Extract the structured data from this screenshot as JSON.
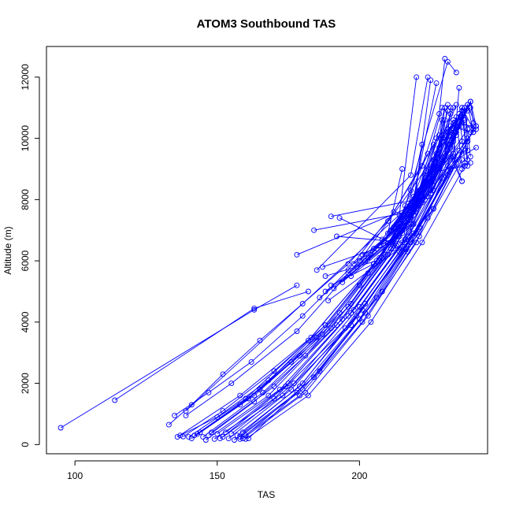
{
  "chart_data": {
    "type": "line",
    "title": "ATOM3 Southbound TAS",
    "xlabel": "TAS",
    "ylabel": "Altitude (m)",
    "xlim": [
      90,
      245
    ],
    "ylim": [
      -300,
      13000
    ],
    "xticks": [
      100,
      150,
      200
    ],
    "yticks": [
      0,
      2000,
      4000,
      6000,
      8000,
      10000,
      12000
    ],
    "grid": false,
    "legend": "none",
    "series_color": "#0000ff",
    "series": [
      {
        "x": [
          95,
          163,
          178
        ],
        "y": [
          550,
          4400,
          5200
        ]
      },
      {
        "x": [
          114,
          163,
          182
        ],
        "y": [
          1450,
          4450,
          5000
        ]
      },
      {
        "x": [
          133,
          141,
          152,
          165,
          180,
          196,
          210,
          222,
          228,
          230
        ],
        "y": [
          650,
          1300,
          2300,
          3400,
          4600,
          5900,
          7300,
          9100,
          10800,
          12600
        ]
      },
      {
        "x": [
          135,
          147,
          162,
          180,
          196,
          212,
          228,
          233
        ],
        "y": [
          950,
          1700,
          2700,
          4200,
          5700,
          7600,
          10100,
          10400
        ]
      },
      {
        "x": [
          136,
          158,
          183,
          205,
          223,
          235,
          240
        ],
        "y": [
          250,
          1600,
          3500,
          5900,
          8000,
          9600,
          10200
        ]
      },
      {
        "x": [
          139,
          155,
          178,
          200,
          218,
          232,
          236
        ],
        "y": [
          950,
          2000,
          3700,
          6000,
          8300,
          10200,
          10500
        ]
      },
      {
        "x": [
          140,
          160,
          182,
          205,
          222,
          238
        ],
        "y": [
          250,
          1500,
          3400,
          5900,
          8100,
          10300
        ]
      },
      {
        "x": [
          141,
          163,
          187,
          208,
          225,
          238
        ],
        "y": [
          200,
          1600,
          3600,
          6100,
          8300,
          10000
        ]
      },
      {
        "x": [
          143,
          165,
          188,
          207,
          223,
          230
        ],
        "y": [
          350,
          1800,
          3900,
          6100,
          8600,
          11000
        ]
      },
      {
        "x": [
          145,
          166,
          190,
          210,
          226,
          236
        ],
        "y": [
          250,
          1700,
          3800,
          6200,
          8700,
          9900
        ]
      },
      {
        "x": [
          146,
          168,
          192,
          212,
          227,
          239
        ],
        "y": [
          150,
          1600,
          3900,
          6400,
          8900,
          9200
        ]
      },
      {
        "x": [
          148,
          170,
          194,
          213,
          226,
          231
        ],
        "y": [
          400,
          1900,
          4100,
          6500,
          9100,
          10900
        ]
      },
      {
        "x": [
          149,
          170,
          195,
          214,
          229,
          237
        ],
        "y": [
          180,
          1500,
          3800,
          6300,
          8700,
          9600
        ]
      },
      {
        "x": [
          150,
          172,
          196,
          215,
          228,
          236
        ],
        "y": [
          350,
          1800,
          4200,
          6600,
          9000,
          10700
        ]
      },
      {
        "x": [
          151,
          173,
          197,
          216,
          231,
          238
        ],
        "y": [
          200,
          1600,
          3900,
          6400,
          8800,
          9900
        ]
      },
      {
        "x": [
          152,
          174,
          197,
          216,
          230,
          232
        ],
        "y": [
          250,
          1900,
          4300,
          6700,
          9300,
          11000
        ]
      },
      {
        "x": [
          153,
          175,
          198,
          217,
          232,
          236
        ],
        "y": [
          400,
          2000,
          4400,
          6800,
          9400,
          8600
        ]
      },
      {
        "x": [
          154,
          176,
          199,
          218,
          232,
          237
        ],
        "y": [
          200,
          1800,
          4200,
          6600,
          9000,
          9100
        ]
      },
      {
        "x": [
          155,
          177,
          200,
          219,
          233,
          235
        ],
        "y": [
          350,
          2000,
          4500,
          6900,
          9500,
          11650
        ]
      },
      {
        "x": [
          156,
          178,
          200,
          218,
          234,
          233
        ],
        "y": [
          150,
          1700,
          4100,
          6700,
          9200,
          10100
        ]
      },
      {
        "x": [
          157,
          179,
          201,
          219,
          233,
          236
        ],
        "y": [
          300,
          1900,
          4400,
          6900,
          9400,
          8600
        ]
      },
      {
        "x": [
          158,
          179,
          201,
          220,
          231,
          234
        ],
        "y": [
          180,
          1600,
          4000,
          6600,
          9100,
          10300
        ]
      },
      {
        "x": [
          158,
          180,
          202,
          220,
          234,
          241
        ],
        "y": [
          250,
          1800,
          4300,
          6900,
          9300,
          9700
        ]
      },
      {
        "x": [
          159,
          181,
          203,
          221,
          236
        ],
        "y": [
          200,
          1700,
          4200,
          6800,
          9300
        ]
      },
      {
        "x": [
          160,
          182,
          204,
          222,
          237
        ],
        "y": [
          180,
          1600,
          4000,
          6600,
          9100
        ]
      },
      {
        "x": [
          159,
          180,
          202,
          221,
          235
        ],
        "y": [
          400,
          2000,
          4600,
          7100,
          9600
        ]
      },
      {
        "x": [
          160,
          184,
          206,
          224,
          238
        ],
        "y": [
          300,
          2200,
          4800,
          7400,
          9900
        ]
      },
      {
        "x": [
          161,
          186,
          208,
          226,
          240
        ],
        "y": [
          200,
          2400,
          5000,
          7700,
          10300
        ]
      },
      {
        "x": [
          137,
          150,
          168,
          185,
          200,
          214,
          226
        ],
        "y": [
          300,
          900,
          2100,
          3500,
          5200,
          7000,
          8900
        ]
      },
      {
        "x": [
          138,
          152,
          170,
          188,
          203,
          216,
          228
        ],
        "y": [
          260,
          1100,
          2400,
          3900,
          5600,
          7400,
          9200
        ]
      },
      {
        "x": [
          142,
          158,
          176,
          193,
          207,
          219,
          231
        ],
        "y": [
          300,
          1300,
          2700,
          4300,
          6000,
          7900,
          9800
        ]
      },
      {
        "x": [
          144,
          161,
          179,
          196,
          209,
          221,
          232
        ],
        "y": [
          400,
          1500,
          2900,
          4500,
          6200,
          8100,
          10200
        ]
      },
      {
        "x": [
          147,
          163,
          181,
          197,
          211,
          223,
          234
        ],
        "y": [
          300,
          1400,
          2900,
          4600,
          6400,
          8400,
          10400
        ]
      },
      {
        "x": [
          139,
          214,
          220
        ],
        "y": [
          1100,
          7500,
          12000
        ]
      },
      {
        "x": [
          178,
          219,
          225
        ],
        "y": [
          6200,
          7800,
          11900
        ]
      },
      {
        "x": [
          184,
          218,
          227
        ],
        "y": [
          7000,
          7600,
          11800
        ]
      },
      {
        "x": [
          190,
          220,
          229
        ],
        "y": [
          7450,
          8000,
          11000
        ]
      },
      {
        "x": [
          193,
          217,
          222
        ],
        "y": [
          7400,
          6300,
          9800
        ]
      },
      {
        "x": [
          192,
          216,
          226
        ],
        "y": [
          6800,
          6600,
          7700
        ]
      },
      {
        "x": [
          187,
          209,
          215
        ],
        "y": [
          5800,
          6500,
          9000
        ]
      },
      {
        "x": [
          185,
          218,
          224
        ],
        "y": [
          5700,
          8800,
          12000
        ]
      },
      {
        "x": [
          188,
          206,
          213
        ],
        "y": [
          5500,
          6000,
          6800
        ]
      },
      {
        "x": [
          190,
          205,
          211
        ],
        "y": [
          5200,
          5900,
          6600
        ]
      },
      {
        "x": [
          198,
          216,
          222
        ],
        "y": [
          5900,
          7300,
          9800
        ]
      },
      {
        "x": [
          200,
          214,
          221
        ],
        "y": [
          6000,
          7100,
          8300
        ]
      },
      {
        "x": [
          201,
          213,
          218
        ],
        "y": [
          6200,
          6800,
          7200
        ]
      },
      {
        "x": [
          203,
          215,
          219
        ],
        "y": [
          6100,
          6900,
          7500
        ]
      },
      {
        "x": [
          205,
          217,
          223
        ],
        "y": [
          6400,
          7400,
          8700
        ]
      },
      {
        "x": [
          186,
          211,
          216,
          224
        ],
        "y": [
          4800,
          6600,
          7800,
          9500
        ]
      },
      {
        "x": [
          188,
          213,
          219,
          226
        ],
        "y": [
          5000,
          6800,
          8100,
          9800
        ]
      },
      {
        "x": [
          189,
          214,
          220,
          227
        ],
        "y": [
          4700,
          6400,
          7700,
          9200
        ]
      },
      {
        "x": [
          191,
          215,
          221,
          227
        ],
        "y": [
          5100,
          7000,
          8300,
          10000
        ]
      },
      {
        "x": [
          194,
          216,
          222,
          229
        ],
        "y": [
          5300,
          7100,
          8400,
          10100
        ]
      },
      {
        "x": [
          196,
          218,
          223,
          230
        ],
        "y": [
          5600,
          7400,
          8800,
          10600
        ]
      },
      {
        "x": [
          197,
          219,
          224,
          231
        ],
        "y": [
          5500,
          7200,
          8500,
          10200
        ]
      },
      {
        "x": [
          199,
          219,
          225,
          232
        ],
        "y": [
          5800,
          7600,
          9000,
          10800
        ]
      },
      {
        "x": [
          202,
          220,
          226,
          233
        ],
        "y": [
          6000,
          7800,
          9300,
          11000
        ]
      },
      {
        "x": [
          204,
          221,
          227,
          234
        ],
        "y": [
          6200,
          8000,
          9500,
          11100
        ]
      },
      {
        "x": [
          206,
          222,
          228,
          236
        ],
        "y": [
          6400,
          8200,
          9700,
          10400
        ]
      },
      {
        "x": [
          207,
          223,
          229,
          237
        ],
        "y": [
          6500,
          8400,
          9900,
          10600
        ]
      },
      {
        "x": [
          208,
          223,
          230,
          238
        ],
        "y": [
          6700,
          8600,
          10100,
          10900
        ]
      },
      {
        "x": [
          210,
          224,
          231,
          239
        ],
        "y": [
          6900,
          8800,
          10300,
          11000
        ]
      },
      {
        "x": [
          211,
          225,
          232,
          239
        ],
        "y": [
          7000,
          8900,
          10400,
          10200
        ]
      },
      {
        "x": [
          212,
          226,
          233,
          240
        ],
        "y": [
          7100,
          9000,
          10500,
          10400
        ]
      },
      {
        "x": [
          213,
          227,
          233,
          241
        ],
        "y": [
          7200,
          9100,
          10600,
          10300
        ]
      },
      {
        "x": [
          215,
          228,
          234,
          236
        ],
        "y": [
          7300,
          9200,
          10700,
          9000
        ]
      },
      {
        "x": [
          217,
          229,
          235,
          237
        ],
        "y": [
          7400,
          9300,
          10800,
          9200
        ]
      },
      {
        "x": [
          218,
          230,
          236,
          238
        ],
        "y": [
          7500,
          9400,
          10900,
          9100
        ]
      },
      {
        "x": [
          219,
          230,
          236,
          240
        ],
        "y": [
          7600,
          9500,
          11000,
          10300
        ]
      },
      {
        "x": [
          220,
          231,
          236,
          238
        ],
        "y": [
          7700,
          9600,
          11000,
          9300
        ]
      },
      {
        "x": [
          221,
          232,
          237,
          239
        ],
        "y": [
          7800,
          9700,
          11000,
          9400
        ]
      },
      {
        "x": [
          222,
          232,
          237,
          238
        ],
        "y": [
          7900,
          9800,
          11000,
          9600
        ]
      },
      {
        "x": [
          223,
          233,
          238,
          240
        ],
        "y": [
          8000,
          9900,
          11100,
          10200
        ]
      },
      {
        "x": [
          224,
          233,
          238,
          241
        ],
        "y": [
          8100,
          10000,
          11100,
          10400
        ]
      },
      {
        "x": [
          225,
          234,
          239,
          240
        ],
        "y": [
          8200,
          10100,
          11200,
          10500
        ]
      },
      {
        "x": [
          226,
          234,
          239,
          241
        ],
        "y": [
          8300,
          10200,
          11200,
          10400
        ]
      },
      {
        "x": [
          212,
          231,
          234
        ],
        "y": [
          6500,
          12500,
          12150
        ]
      },
      {
        "x": [
          214,
          226,
          229
        ],
        "y": [
          6800,
          8600,
          10600
        ]
      },
      {
        "x": [
          217,
          227,
          230
        ],
        "y": [
          7200,
          9000,
          11000
        ]
      },
      {
        "x": [
          219,
          228,
          231
        ],
        "y": [
          7500,
          9300,
          11100
        ]
      }
    ]
  }
}
